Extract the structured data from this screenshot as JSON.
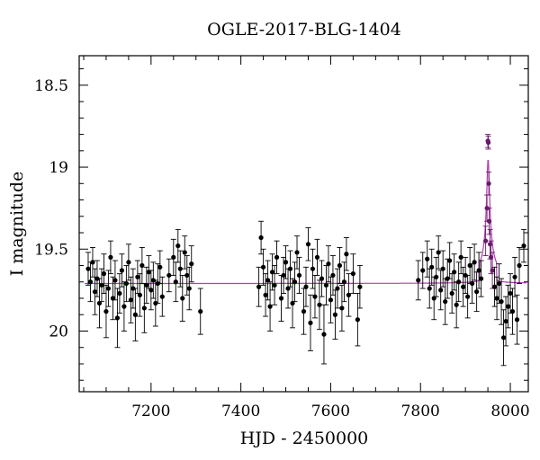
{
  "chart_data": {
    "type": "scatter",
    "title": "OGLE-2017-BLG-1404",
    "xlabel": "HJD - 2450000",
    "ylabel": "I magnitude",
    "xlim": [
      7040,
      8040
    ],
    "ylim": [
      20.37,
      18.32
    ],
    "y_inverted": true,
    "x_ticks": [
      7200,
      7400,
      7600,
      7800,
      8000
    ],
    "y_ticks": [
      18.5,
      19,
      19.5,
      20
    ],
    "grid": false,
    "colors": {
      "data": "#000000",
      "model": "#b43cb4"
    },
    "series": [
      {
        "type": "errorbar-points",
        "points": [
          [
            7060,
            19.62,
            0.1
          ],
          [
            7065,
            19.7,
            0.12
          ],
          [
            7070,
            19.58,
            0.09
          ],
          [
            7075,
            19.76,
            0.14
          ],
          [
            7080,
            19.68,
            0.11
          ],
          [
            7085,
            19.83,
            0.15
          ],
          [
            7090,
            19.72,
            0.1
          ],
          [
            7095,
            19.65,
            0.12
          ],
          [
            7100,
            19.88,
            0.16
          ],
          [
            7105,
            19.74,
            0.11
          ],
          [
            7110,
            19.55,
            0.1
          ],
          [
            7115,
            19.8,
            0.13
          ],
          [
            7120,
            19.69,
            0.12
          ],
          [
            7125,
            19.92,
            0.18
          ],
          [
            7130,
            19.77,
            0.12
          ],
          [
            7135,
            19.63,
            0.1
          ],
          [
            7140,
            19.85,
            0.15
          ],
          [
            7145,
            19.71,
            0.11
          ],
          [
            7150,
            19.58,
            0.11
          ],
          [
            7155,
            19.81,
            0.14
          ],
          [
            7160,
            19.74,
            0.12
          ],
          [
            7165,
            19.9,
            0.16
          ],
          [
            7170,
            19.67,
            0.1
          ],
          [
            7175,
            19.78,
            0.13
          ],
          [
            7180,
            19.6,
            0.11
          ],
          [
            7185,
            19.86,
            0.15
          ],
          [
            7190,
            19.72,
            0.11
          ],
          [
            7195,
            19.64,
            0.1
          ],
          [
            7200,
            19.75,
            0.12
          ],
          [
            7205,
            19.69,
            0.11
          ],
          [
            7210,
            19.83,
            0.14
          ],
          [
            7215,
            19.71,
            0.12
          ],
          [
            7220,
            19.61,
            0.1
          ],
          [
            7225,
            19.79,
            0.12
          ],
          [
            7240,
            19.66,
            0.1
          ],
          [
            7250,
            19.55,
            0.11
          ],
          [
            7255,
            19.7,
            0.12
          ],
          [
            7260,
            19.48,
            0.1
          ],
          [
            7265,
            19.62,
            0.11
          ],
          [
            7270,
            19.8,
            0.14
          ],
          [
            7275,
            19.52,
            0.1
          ],
          [
            7280,
            19.66,
            0.12
          ],
          [
            7285,
            19.74,
            0.13
          ],
          [
            7290,
            19.59,
            0.11
          ],
          [
            7310,
            19.88,
            0.14
          ],
          [
            7440,
            19.73,
            0.12
          ],
          [
            7445,
            19.43,
            0.1
          ],
          [
            7450,
            19.61,
            0.11
          ],
          [
            7455,
            19.78,
            0.13
          ],
          [
            7460,
            19.69,
            0.12
          ],
          [
            7465,
            19.85,
            0.15
          ],
          [
            7470,
            19.64,
            0.11
          ],
          [
            7475,
            19.72,
            0.12
          ],
          [
            7480,
            19.55,
            0.1
          ],
          [
            7490,
            19.8,
            0.14
          ],
          [
            7495,
            19.66,
            0.11
          ],
          [
            7500,
            19.58,
            0.1
          ],
          [
            7505,
            19.74,
            0.12
          ],
          [
            7510,
            19.62,
            0.11
          ],
          [
            7515,
            19.83,
            0.15
          ],
          [
            7520,
            19.7,
            0.12
          ],
          [
            7525,
            19.52,
            0.1
          ],
          [
            7530,
            19.66,
            0.11
          ],
          [
            7540,
            19.88,
            0.14
          ],
          [
            7545,
            19.73,
            0.12
          ],
          [
            7550,
            19.47,
            0.1
          ],
          [
            7555,
            19.95,
            0.17
          ],
          [
            7560,
            19.62,
            0.12
          ],
          [
            7565,
            19.79,
            0.13
          ],
          [
            7570,
            19.55,
            0.11
          ],
          [
            7575,
            19.84,
            0.15
          ],
          [
            7580,
            19.68,
            0.11
          ],
          [
            7585,
            20.02,
            0.18
          ],
          [
            7590,
            19.72,
            0.12
          ],
          [
            7595,
            19.59,
            0.11
          ],
          [
            7600,
            19.81,
            0.14
          ],
          [
            7605,
            19.66,
            0.12
          ],
          [
            7610,
            19.9,
            0.15
          ],
          [
            7615,
            19.74,
            0.12
          ],
          [
            7620,
            19.6,
            0.11
          ],
          [
            7625,
            19.86,
            0.14
          ],
          [
            7630,
            19.7,
            0.12
          ],
          [
            7635,
            19.53,
            0.1
          ],
          [
            7640,
            19.78,
            0.13
          ],
          [
            7650,
            19.65,
            0.12
          ],
          [
            7660,
            19.93,
            0.16
          ],
          [
            7665,
            19.73,
            0.13
          ],
          [
            7795,
            19.69,
            0.12
          ],
          [
            7805,
            19.63,
            0.11
          ],
          [
            7815,
            19.56,
            0.11
          ],
          [
            7820,
            19.74,
            0.12
          ],
          [
            7825,
            19.61,
            0.11
          ],
          [
            7830,
            19.8,
            0.13
          ],
          [
            7835,
            19.67,
            0.12
          ],
          [
            7840,
            19.52,
            0.1
          ],
          [
            7845,
            19.75,
            0.12
          ],
          [
            7850,
            19.62,
            0.11
          ],
          [
            7855,
            19.82,
            0.14
          ],
          [
            7860,
            19.68,
            0.12
          ],
          [
            7865,
            19.57,
            0.11
          ],
          [
            7870,
            19.77,
            0.12
          ],
          [
            7875,
            19.64,
            0.11
          ],
          [
            7880,
            19.84,
            0.14
          ],
          [
            7885,
            19.7,
            0.12
          ],
          [
            7890,
            19.55,
            0.1
          ],
          [
            7895,
            19.73,
            0.12
          ],
          [
            7900,
            19.66,
            0.11
          ],
          [
            7905,
            19.79,
            0.13
          ],
          [
            7910,
            19.6,
            0.11
          ],
          [
            7915,
            19.71,
            0.12
          ],
          [
            7920,
            19.58,
            0.11
          ],
          [
            7925,
            19.76,
            0.12
          ],
          [
            7930,
            19.63,
            0.11
          ],
          [
            7935,
            19.68,
            0.11
          ],
          [
            7945,
            19.45,
            0.09
          ],
          [
            7948,
            19.25,
            0.08
          ],
          [
            7950,
            18.84,
            0.04
          ],
          [
            7951,
            18.85,
            0.04
          ],
          [
            7952,
            19.1,
            0.07
          ],
          [
            7953,
            19.33,
            0.08
          ],
          [
            7955,
            19.47,
            0.09
          ],
          [
            7957,
            19.55,
            0.1
          ],
          [
            7960,
            19.63,
            0.11
          ],
          [
            7965,
            19.73,
            0.12
          ],
          [
            7970,
            19.8,
            0.13
          ],
          [
            7975,
            19.71,
            0.12
          ],
          [
            7980,
            19.82,
            0.14
          ],
          [
            7985,
            20.04,
            0.17
          ],
          [
            7990,
            19.94,
            0.15
          ],
          [
            7995,
            19.85,
            0.13
          ],
          [
            8000,
            19.77,
            0.12
          ],
          [
            8005,
            19.88,
            0.14
          ],
          [
            8010,
            19.67,
            0.12
          ],
          [
            8015,
            19.93,
            0.15
          ],
          [
            8020,
            19.6,
            0.11
          ],
          [
            8030,
            19.48,
            0.1
          ]
        ]
      },
      {
        "type": "model",
        "baseline": 19.71,
        "peak_x": 7950.5,
        "peak_mag": 18.95
      }
    ]
  }
}
